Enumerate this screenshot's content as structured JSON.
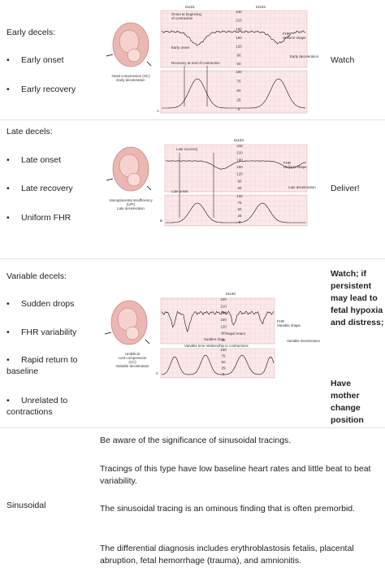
{
  "scales": {
    "fhr": [
      "240",
      "210",
      "180",
      "150",
      "120",
      "90",
      "60"
    ],
    "uc": [
      "100",
      "75",
      "50",
      "25",
      "0"
    ]
  },
  "rows": [
    {
      "label": "Early decels:",
      "bullets": [
        "Early onset",
        "Early recovery"
      ],
      "action": "Watch",
      "figure": {
        "ids": [
          "61181",
          "61182"
        ],
        "annotations": [
          "Onset at beginning",
          "of contraction",
          "Early onset",
          "Recovery at end of contraction",
          "FHR",
          "Uniform shape",
          "Early deceleration"
        ],
        "caption": [
          "Head compression (HC)",
          "Early deceleration"
        ],
        "panel": "A"
      }
    },
    {
      "label": "Late decels:",
      "bullets": [
        "Late onset",
        "Late recovery",
        "Uniform FHR"
      ],
      "action": "Deliver!",
      "figure": {
        "ids": [
          "61183"
        ],
        "annotations": [
          "Late recovery",
          "Late onset",
          "FHR",
          "Uniform shape",
          "Late deceleration"
        ],
        "caption": [
          "Uteroplacental insufficiency",
          "(UPI)",
          "Late deceleration"
        ],
        "panel": "B"
      }
    },
    {
      "label": "Variable decels:",
      "bullets": [
        "Sudden drops",
        "FHR variability",
        "Rapid return to baseline",
        "Unrelated to contractions"
      ],
      "action": "Watch; if persistent may lead to fetal hypoxia and distress;",
      "action2": "Have mother change position",
      "figure": {
        "ids": [
          "61180"
        ],
        "annotations": [
          "Rapid return",
          "Sudden drop",
          "Variable time relationship to contractions",
          "FHR",
          "Variable shape",
          "Variable deceleration"
        ],
        "caption": [
          "Umbilical",
          "cord compression",
          "(CC)",
          "Variable deceleration"
        ],
        "panel": "C"
      }
    }
  ],
  "sinusoidal": {
    "label": "Sinusoidal",
    "paragraphs": [
      "Be aware of the significance of sinusoidal tracings.",
      "Tracings of this type have low baseline heart rates and little beat to beat variability.",
      "The sinusoidal tracing is an ominous finding that is often premorbid.",
      "The differential diagnosis includes erythroblastosis fetalis, placental abruption, fetal hemorrhage (trauma), and amnionitis."
    ]
  }
}
